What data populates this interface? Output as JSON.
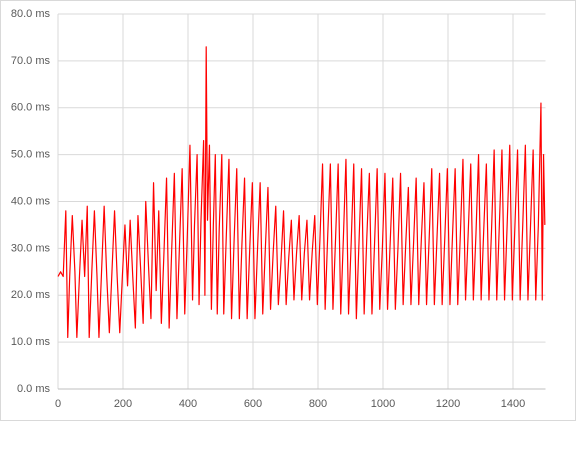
{
  "chart_data": {
    "type": "line",
    "x": [
      0,
      8,
      16,
      24,
      30,
      36,
      44,
      52,
      58,
      66,
      74,
      82,
      90,
      96,
      104,
      112,
      120,
      126,
      134,
      142,
      150,
      158,
      166,
      174,
      182,
      190,
      198,
      206,
      214,
      222,
      230,
      238,
      246,
      254,
      262,
      270,
      278,
      286,
      294,
      302,
      310,
      318,
      326,
      334,
      342,
      350,
      358,
      366,
      374,
      382,
      390,
      398,
      406,
      414,
      420,
      428,
      434,
      440,
      448,
      452,
      456,
      460,
      466,
      472,
      478,
      484,
      490,
      496,
      504,
      510,
      518,
      526,
      534,
      542,
      550,
      558,
      566,
      574,
      582,
      590,
      598,
      606,
      614,
      622,
      630,
      638,
      646,
      654,
      662,
      670,
      678,
      686,
      694,
      702,
      710,
      718,
      726,
      734,
      742,
      750,
      758,
      766,
      774,
      782,
      790,
      798,
      806,
      814,
      822,
      830,
      838,
      846,
      854,
      862,
      870,
      878,
      886,
      894,
      902,
      910,
      918,
      926,
      934,
      942,
      950,
      958,
      966,
      974,
      982,
      990,
      998,
      1006,
      1014,
      1022,
      1030,
      1038,
      1046,
      1054,
      1062,
      1070,
      1078,
      1086,
      1094,
      1102,
      1110,
      1118,
      1126,
      1134,
      1142,
      1150,
      1158,
      1166,
      1174,
      1182,
      1190,
      1198,
      1206,
      1214,
      1222,
      1230,
      1238,
      1246,
      1254,
      1262,
      1270,
      1278,
      1286,
      1294,
      1302,
      1310,
      1318,
      1326,
      1334,
      1342,
      1350,
      1358,
      1366,
      1374,
      1382,
      1390,
      1398,
      1406,
      1414,
      1422,
      1430,
      1438,
      1446,
      1454,
      1462,
      1470,
      1478,
      1486,
      1490,
      1494,
      1498
    ],
    "series": [
      {
        "color": "#ff0000",
        "values": [
          24,
          25,
          24,
          38,
          11,
          24,
          37,
          25,
          11,
          24,
          36,
          24,
          39,
          11,
          25,
          38,
          24,
          11,
          25,
          39,
          24,
          12,
          25,
          38,
          24,
          12,
          24,
          35,
          22,
          36,
          24,
          13,
          37,
          26,
          14,
          40,
          27,
          15,
          44,
          21,
          38,
          14,
          29,
          45,
          13,
          30,
          46,
          15,
          31,
          47,
          16,
          33,
          52,
          19,
          35,
          50,
          18,
          36,
          53,
          20,
          73,
          36,
          52,
          17,
          35,
          50,
          16,
          34,
          50,
          16,
          33,
          49,
          15,
          32,
          47,
          15,
          31,
          45,
          15,
          30,
          44,
          15,
          30,
          44,
          16,
          30,
          43,
          17,
          29,
          39,
          18,
          27,
          38,
          18,
          28,
          36,
          19,
          29,
          37,
          19,
          29,
          36,
          19,
          29,
          37,
          18,
          32,
          48,
          17,
          33,
          48,
          17,
          32,
          48,
          16,
          32,
          49,
          16,
          31,
          48,
          15,
          31,
          47,
          16,
          32,
          46,
          16,
          31,
          47,
          17,
          30,
          46,
          17,
          31,
          45,
          17,
          30,
          46,
          18,
          31,
          43,
          18,
          31,
          45,
          18,
          32,
          44,
          18,
          32,
          47,
          18,
          32,
          46,
          18,
          32,
          47,
          18,
          33,
          47,
          18,
          33,
          49,
          19,
          33,
          48,
          19,
          33,
          50,
          19,
          34,
          48,
          19,
          34,
          51,
          19,
          35,
          51,
          19,
          35,
          52,
          19,
          35,
          51,
          19,
          35,
          52,
          19,
          35,
          51,
          19,
          35,
          61,
          19,
          50,
          35
        ]
      }
    ],
    "xlim": [
      0,
      1500
    ],
    "xticks": [
      0,
      200,
      400,
      600,
      800,
      1000,
      1200,
      1400
    ],
    "ylim": [
      0,
      80
    ],
    "yticks": [
      {
        "value": 0,
        "label": "0.0 ms"
      },
      {
        "value": 10,
        "label": "10.0 ms"
      },
      {
        "value": 20,
        "label": "20.0 ms"
      },
      {
        "value": 30,
        "label": "30.0 ms"
      },
      {
        "value": 40,
        "label": "40.0 ms"
      },
      {
        "value": 50,
        "label": "50.0 ms"
      },
      {
        "value": 60,
        "label": "60.0 ms"
      },
      {
        "value": 70,
        "label": "70.0 ms"
      },
      {
        "value": 80,
        "label": "80.0 ms"
      }
    ],
    "grid": true
  }
}
